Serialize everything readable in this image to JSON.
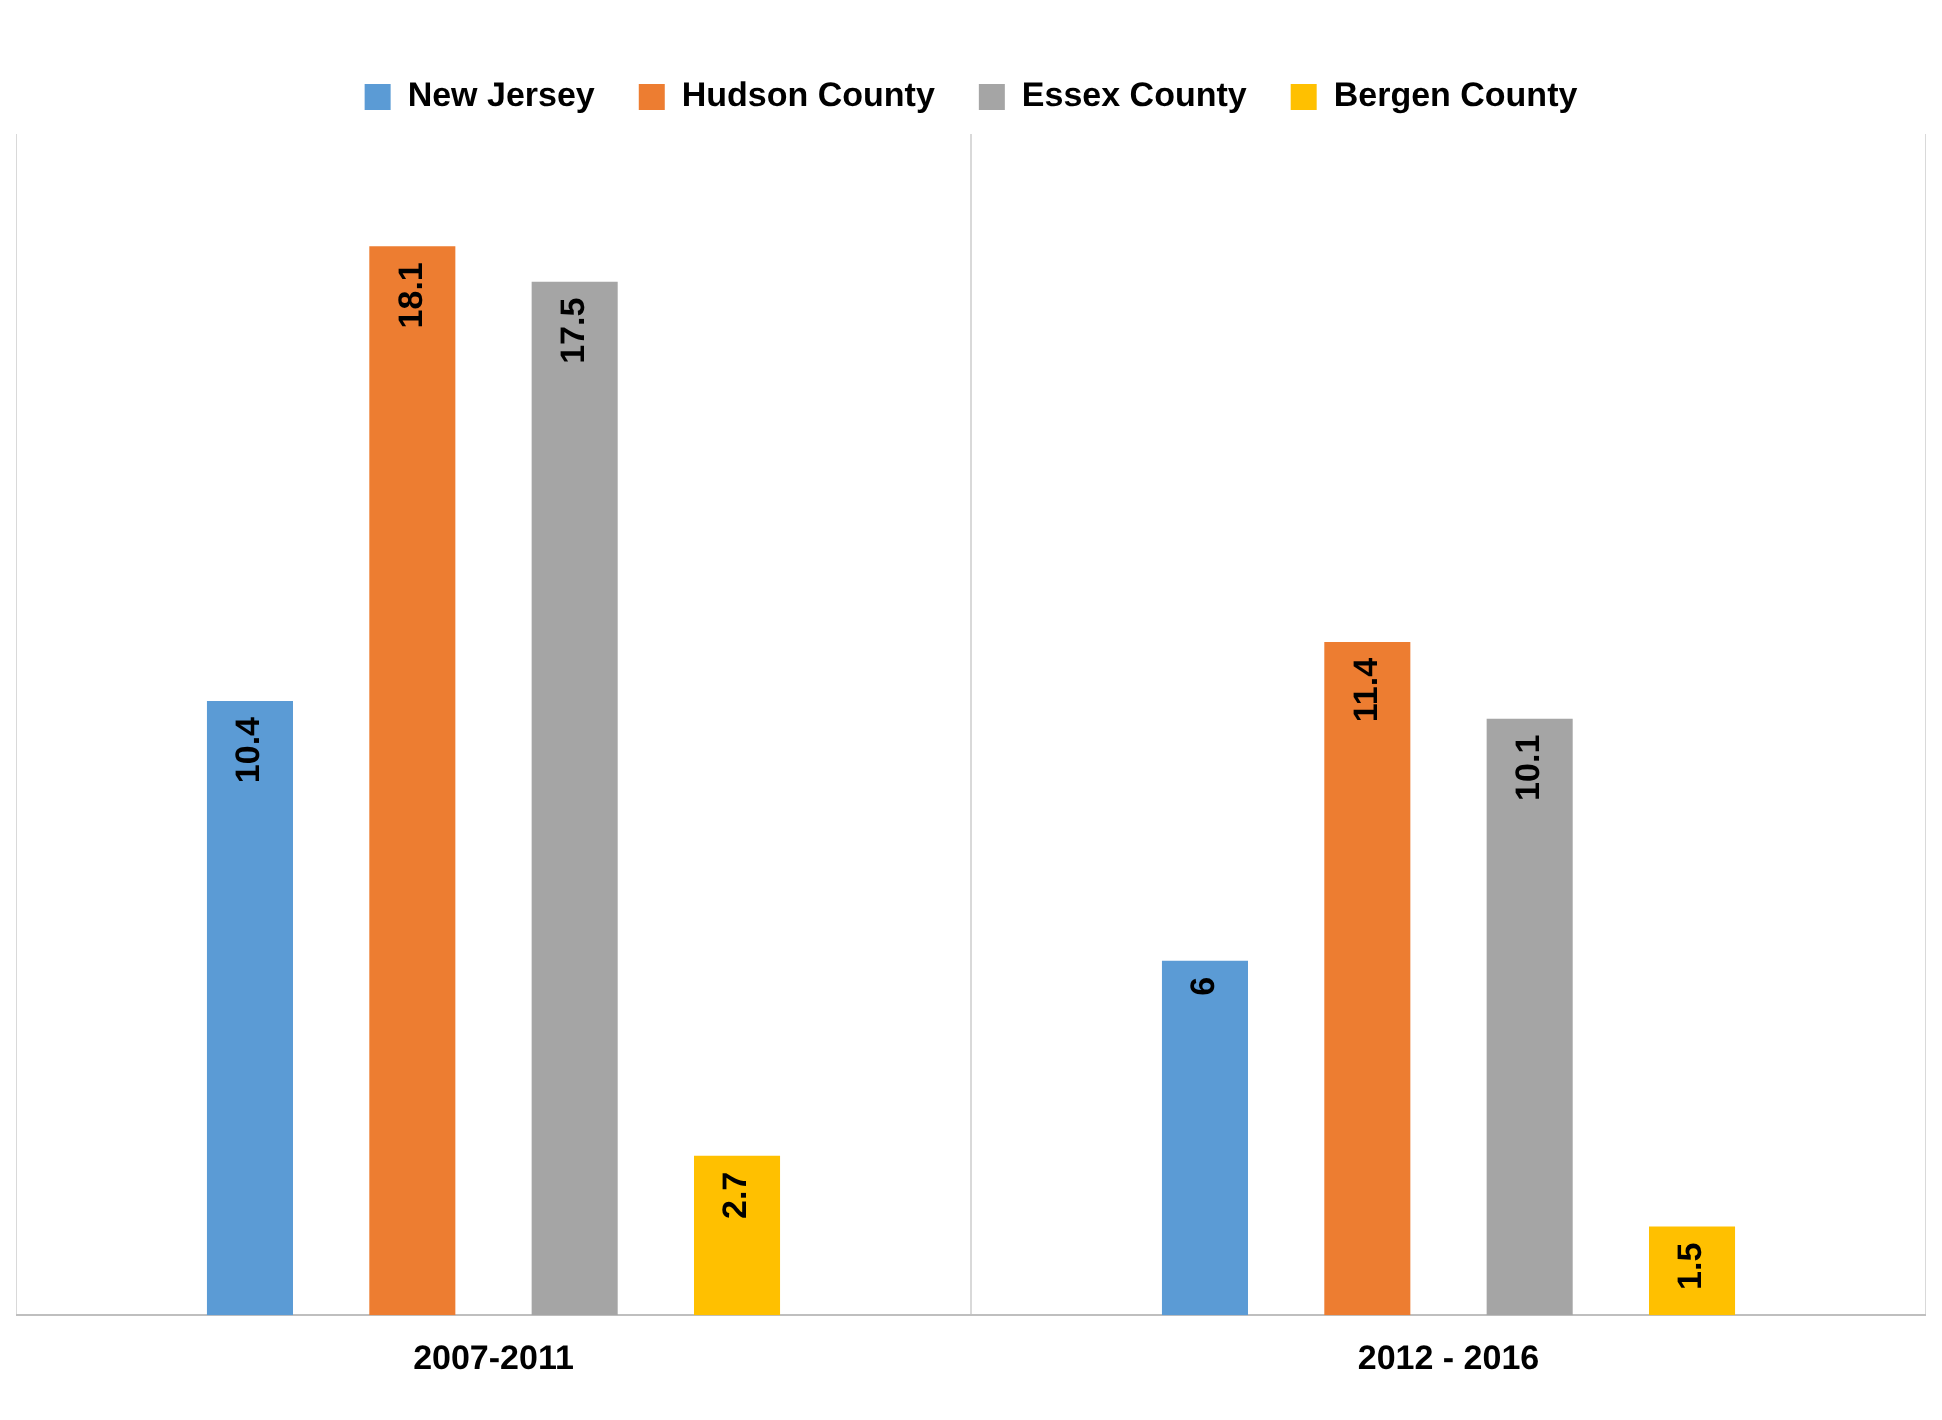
{
  "chart_data": {
    "type": "bar",
    "categories": [
      "2007-2011",
      "2012 - 2016"
    ],
    "series": [
      {
        "name": "New Jersey",
        "color": "#5b9bd5",
        "values": [
          10.4,
          6
        ]
      },
      {
        "name": "Hudson County",
        "color": "#ed7d31",
        "values": [
          18.1,
          11.4
        ]
      },
      {
        "name": "Essex County",
        "color": "#a5a5a5",
        "values": [
          17.5,
          10.1
        ]
      },
      {
        "name": "Bergen County",
        "color": "#ffc000",
        "values": [
          2.7,
          1.5
        ]
      }
    ],
    "data_labels": true,
    "grid": "x",
    "legend": "top"
  }
}
